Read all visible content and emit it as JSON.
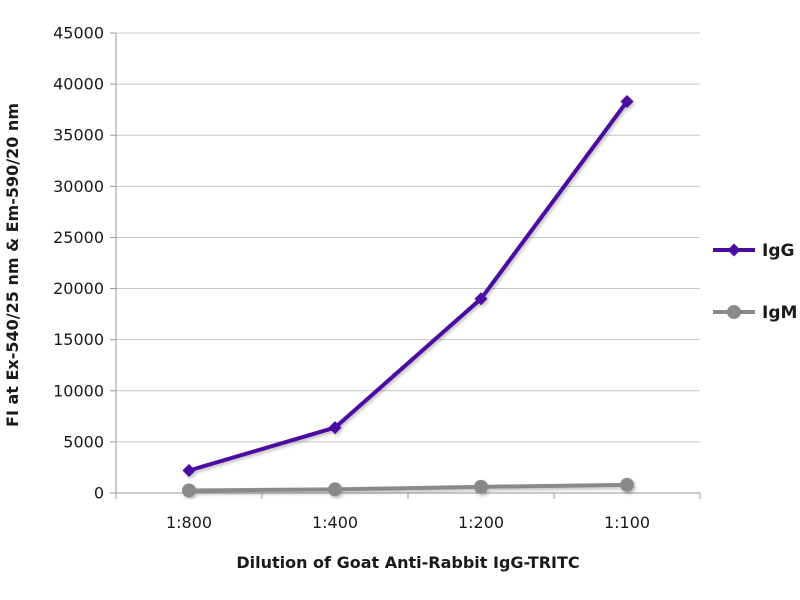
{
  "chart_data": {
    "type": "line",
    "categories": [
      "1:800",
      "1:400",
      "1:200",
      "1:100"
    ],
    "xlabel": "Dilution of Goat Anti-Rabbit IgG-TRITC",
    "ylabel": "FI at Ex-540/25 nm & Em-590/20 nm",
    "ylim": [
      0,
      45000
    ],
    "yticks": [
      "0",
      "5000",
      "10000",
      "15000",
      "20000",
      "25000",
      "30000",
      "35000",
      "40000",
      "45000"
    ],
    "grid": true,
    "legend_position": "right",
    "series": [
      {
        "name": "IgG",
        "values": [
          2200,
          6400,
          19000,
          38300
        ],
        "color": "#4b0aa0",
        "marker": "diamond"
      },
      {
        "name": "IgM",
        "values": [
          250,
          350,
          600,
          800
        ],
        "color": "#8a8a8a",
        "marker": "circle"
      }
    ]
  }
}
